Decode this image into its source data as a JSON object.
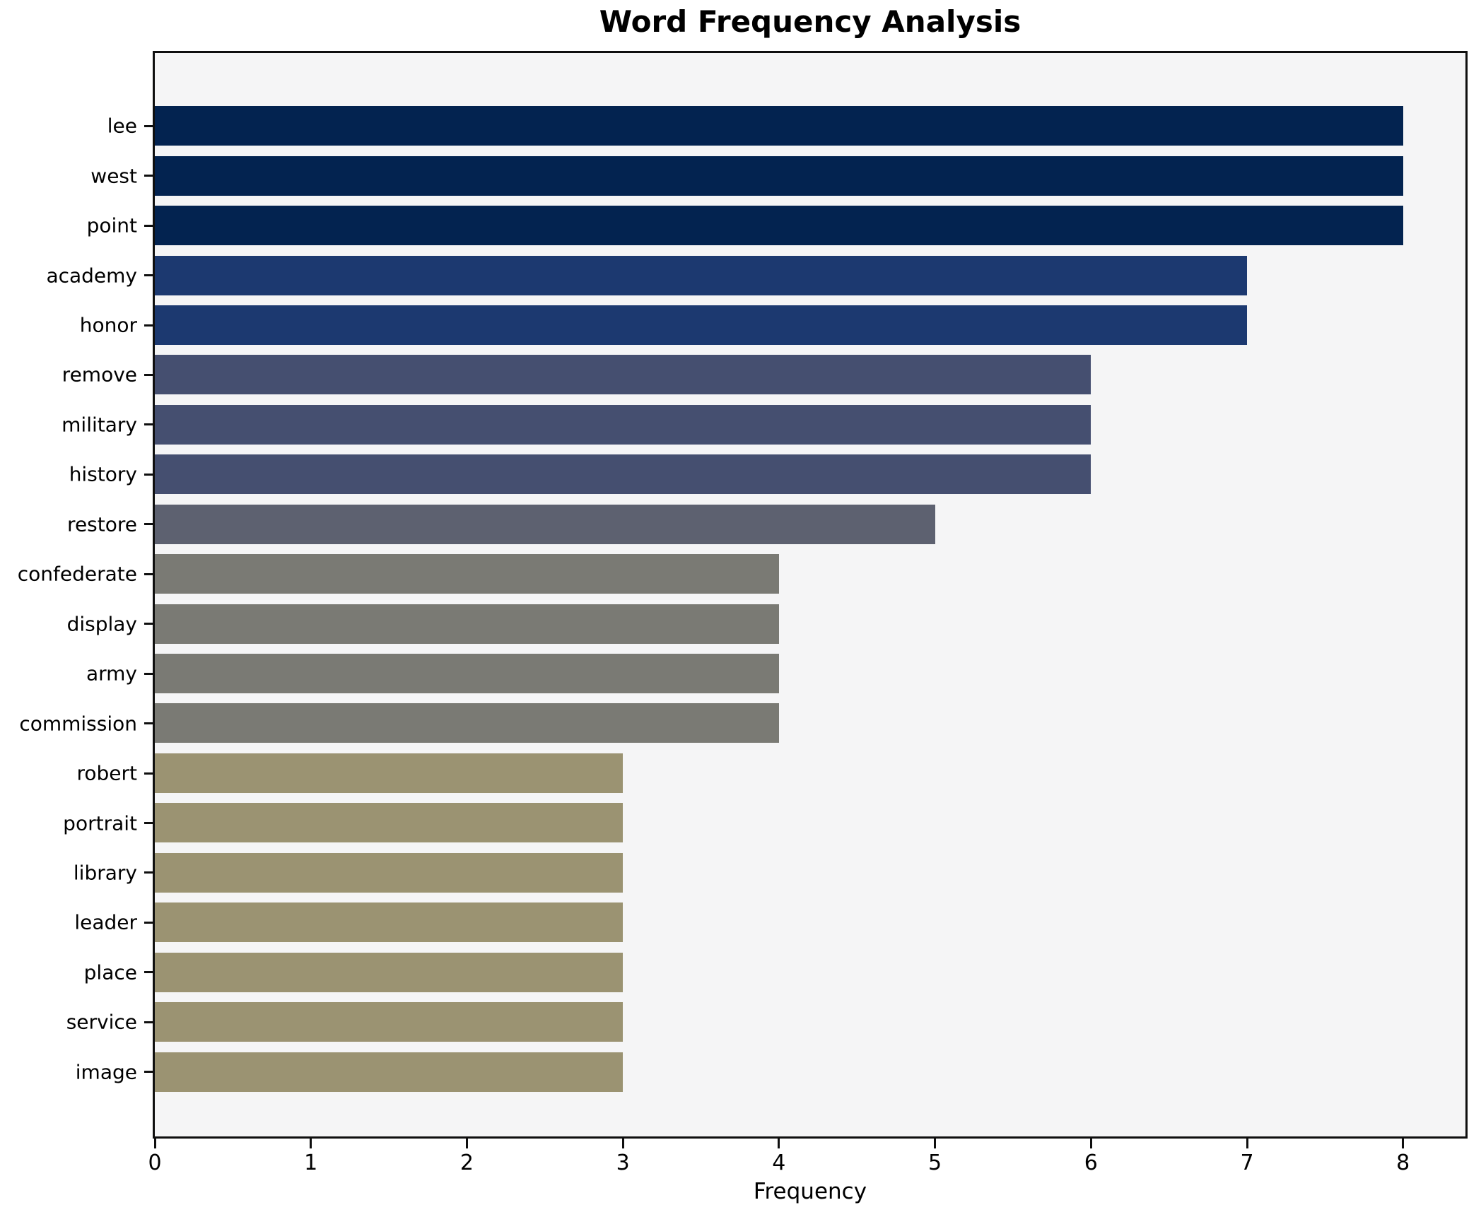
{
  "chart_data": {
    "type": "bar",
    "orientation": "horizontal",
    "title": "Word Frequency Analysis",
    "xlabel": "Frequency",
    "ylabel": "",
    "categories": [
      "lee",
      "west",
      "point",
      "academy",
      "honor",
      "remove",
      "military",
      "history",
      "restore",
      "confederate",
      "display",
      "army",
      "commission",
      "robert",
      "portrait",
      "library",
      "leader",
      "place",
      "service",
      "image"
    ],
    "values": [
      8,
      8,
      8,
      7,
      7,
      6,
      6,
      6,
      5,
      4,
      4,
      4,
      4,
      3,
      3,
      3,
      3,
      3,
      3,
      3
    ],
    "bar_colors": [
      "#032350",
      "#032350",
      "#032350",
      "#1c3970",
      "#1c3970",
      "#454f70",
      "#454f70",
      "#454f70",
      "#5d6170",
      "#7a7a74",
      "#7a7a74",
      "#7a7a74",
      "#7a7a74",
      "#9b9372",
      "#9b9372",
      "#9b9372",
      "#9b9372",
      "#9b9372",
      "#9b9372",
      "#9b9372"
    ],
    "xticks": [
      0,
      1,
      2,
      3,
      4,
      5,
      6,
      7,
      8
    ],
    "xlim": [
      0,
      8.4
    ],
    "grid": false,
    "legend_position": "none",
    "plot_background": "#f5f5f6",
    "figure_background": "#ffffff",
    "axis_color": "#0f0f0f",
    "text_color": "#000000"
  }
}
